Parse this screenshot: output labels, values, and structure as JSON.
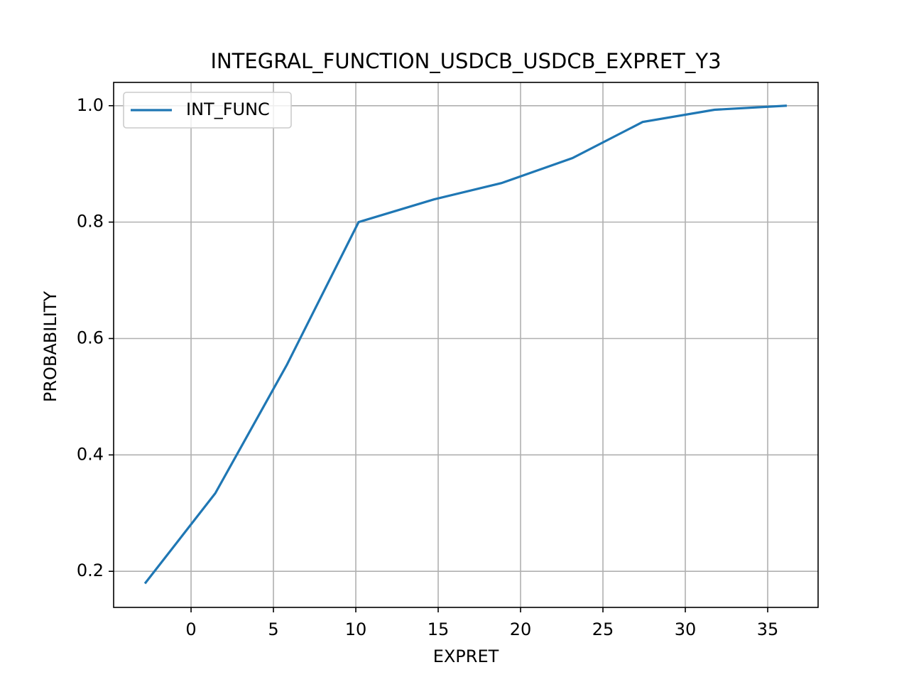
{
  "chart_data": {
    "type": "line",
    "title": "INTEGRAL_FUNCTION_USDCB_USDCB_EXPRET_Y3",
    "x_label": "EXPRET",
    "y_label": "PROBABILITY",
    "x": [
      -2.8,
      1.47,
      5.82,
      10.17,
      14.74,
      18.84,
      23.15,
      27.41,
      31.77,
      36.16
    ],
    "series": [
      {
        "name": "INT_FUNC",
        "color": "#1f77b4",
        "values": [
          0.179,
          0.334,
          0.555,
          0.8,
          0.839,
          0.867,
          0.91,
          0.972,
          0.993,
          1.0
        ]
      }
    ],
    "xlim": [
      -4.7,
      38.06
    ],
    "xticks": [
      0,
      5,
      10,
      15,
      20,
      25,
      30,
      35
    ],
    "ylim": [
      0.138,
      1.04
    ],
    "yticks": [
      {
        "value": 0.2,
        "label": "0.2"
      },
      {
        "value": 0.4,
        "label": "0.4"
      },
      {
        "value": 0.6,
        "label": "0.6"
      },
      {
        "value": 0.8,
        "label": "0.8"
      },
      {
        "value": 1.0,
        "label": "1.0"
      }
    ],
    "grid": true,
    "legend": "upper left"
  }
}
